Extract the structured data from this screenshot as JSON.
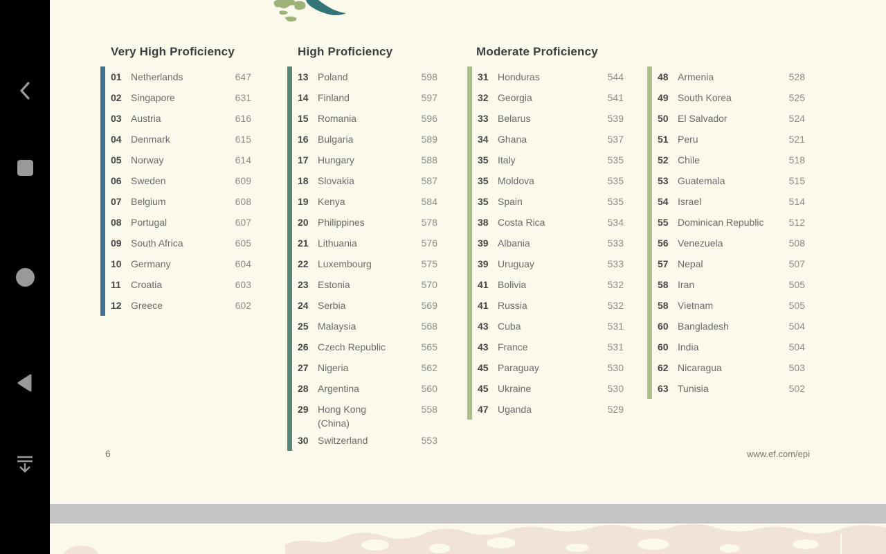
{
  "page": {
    "number": "6",
    "footer_url": "www.ef.com/epi"
  },
  "colors": {
    "page_bg": "#fbf8ec",
    "header_text": "#3d3d3d",
    "rank_text": "#474747",
    "country_text": "#6b6b6b",
    "score_text": "#8c8c8c",
    "footer_text": "#777770",
    "separator_gray": "#c5c5c5",
    "icon_gray": "#999999",
    "very_high": "#41718f",
    "high": "#578577",
    "moderate": "#abbe86",
    "map_olive": "#9db377",
    "map_teal": "#34757a",
    "map_pink": "#f1e2da"
  },
  "nav_rail": {
    "icons": [
      "back-chevron",
      "recents-square",
      "home-circle",
      "back-triangle",
      "collapse-nav"
    ]
  },
  "sections": [
    {
      "title": "Very High Proficiency",
      "color_key": "very_high"
    },
    {
      "title": "High Proficiency",
      "color_key": "high"
    },
    {
      "title": "Moderate Proficiency",
      "color_key": "moderate"
    }
  ],
  "columns": [
    {
      "section": 0,
      "rows": [
        {
          "rank": "01",
          "country": "Netherlands",
          "score": "647"
        },
        {
          "rank": "02",
          "country": "Singapore",
          "score": "631"
        },
        {
          "rank": "03",
          "country": "Austria",
          "score": "616"
        },
        {
          "rank": "04",
          "country": "Denmark",
          "score": "615"
        },
        {
          "rank": "05",
          "country": "Norway",
          "score": "614"
        },
        {
          "rank": "06",
          "country": "Sweden",
          "score": "609"
        },
        {
          "rank": "07",
          "country": "Belgium",
          "score": "608"
        },
        {
          "rank": "08",
          "country": "Portugal",
          "score": "607"
        },
        {
          "rank": "09",
          "country": "South Africa",
          "score": "605"
        },
        {
          "rank": "10",
          "country": "Germany",
          "score": "604"
        },
        {
          "rank": "11",
          "country": "Croatia",
          "score": "603"
        },
        {
          "rank": "12",
          "country": "Greece",
          "score": "602"
        }
      ]
    },
    {
      "section": 1,
      "rows": [
        {
          "rank": "13",
          "country": "Poland",
          "score": "598"
        },
        {
          "rank": "14",
          "country": "Finland",
          "score": "597"
        },
        {
          "rank": "15",
          "country": "Romania",
          "score": "596"
        },
        {
          "rank": "16",
          "country": "Bulgaria",
          "score": "589"
        },
        {
          "rank": "17",
          "country": "Hungary",
          "score": "588"
        },
        {
          "rank": "18",
          "country": "Slovakia",
          "score": "587"
        },
        {
          "rank": "19",
          "country": "Kenya",
          "score": "584"
        },
        {
          "rank": "20",
          "country": "Philippines",
          "score": "578"
        },
        {
          "rank": "21",
          "country": "Lithuania",
          "score": "576"
        },
        {
          "rank": "22",
          "country": "Luxembourg",
          "score": "575"
        },
        {
          "rank": "23",
          "country": "Estonia",
          "score": "570"
        },
        {
          "rank": "24",
          "country": "Serbia",
          "score": "569"
        },
        {
          "rank": "25",
          "country": "Malaysia",
          "score": "568"
        },
        {
          "rank": "26",
          "country": "Czech Republic",
          "score": "565"
        },
        {
          "rank": "27",
          "country": "Nigeria",
          "score": "562"
        },
        {
          "rank": "28",
          "country": "Argentina",
          "score": "560"
        },
        {
          "rank": "29",
          "country": "Hong Kong",
          "country_line2": "(China)",
          "score": "558"
        },
        {
          "rank": "30",
          "country": "Switzerland",
          "score": "553"
        }
      ]
    },
    {
      "section": 2,
      "rows": [
        {
          "rank": "31",
          "country": "Honduras",
          "score": "544"
        },
        {
          "rank": "32",
          "country": "Georgia",
          "score": "541"
        },
        {
          "rank": "33",
          "country": "Belarus",
          "score": "539"
        },
        {
          "rank": "34",
          "country": "Ghana",
          "score": "537"
        },
        {
          "rank": "35",
          "country": "Italy",
          "score": "535"
        },
        {
          "rank": "35",
          "country": "Moldova",
          "score": "535"
        },
        {
          "rank": "35",
          "country": "Spain",
          "score": "535"
        },
        {
          "rank": "38",
          "country": "Costa Rica",
          "score": "534"
        },
        {
          "rank": "39",
          "country": "Albania",
          "score": "533"
        },
        {
          "rank": "39",
          "country": "Uruguay",
          "score": "533"
        },
        {
          "rank": "41",
          "country": "Bolivia",
          "score": "532"
        },
        {
          "rank": "41",
          "country": "Russia",
          "score": "532"
        },
        {
          "rank": "43",
          "country": "Cuba",
          "score": "531"
        },
        {
          "rank": "43",
          "country": "France",
          "score": "531"
        },
        {
          "rank": "45",
          "country": "Paraguay",
          "score": "530"
        },
        {
          "rank": "45",
          "country": "Ukraine",
          "score": "530"
        },
        {
          "rank": "47",
          "country": "Uganda",
          "score": "529"
        }
      ]
    },
    {
      "section": 2,
      "rows": [
        {
          "rank": "48",
          "country": "Armenia",
          "score": "528"
        },
        {
          "rank": "49",
          "country": "South Korea",
          "score": "525"
        },
        {
          "rank": "50",
          "country": "El Salvador",
          "score": "524"
        },
        {
          "rank": "51",
          "country": "Peru",
          "score": "521"
        },
        {
          "rank": "52",
          "country": "Chile",
          "score": "518"
        },
        {
          "rank": "53",
          "country": "Guatemala",
          "score": "515"
        },
        {
          "rank": "54",
          "country": "Israel",
          "score": "514"
        },
        {
          "rank": "55",
          "country": "Dominican Republic",
          "score": "512"
        },
        {
          "rank": "56",
          "country": "Venezuela",
          "score": "508"
        },
        {
          "rank": "57",
          "country": "Nepal",
          "score": "507"
        },
        {
          "rank": "58",
          "country": "Iran",
          "score": "505"
        },
        {
          "rank": "58",
          "country": "Vietnam",
          "score": "505"
        },
        {
          "rank": "60",
          "country": "Bangladesh",
          "score": "504"
        },
        {
          "rank": "60",
          "country": "India",
          "score": "504"
        },
        {
          "rank": "62",
          "country": "Nicaragua",
          "score": "503"
        },
        {
          "rank": "63",
          "country": "Tunisia",
          "score": "502"
        }
      ]
    }
  ]
}
